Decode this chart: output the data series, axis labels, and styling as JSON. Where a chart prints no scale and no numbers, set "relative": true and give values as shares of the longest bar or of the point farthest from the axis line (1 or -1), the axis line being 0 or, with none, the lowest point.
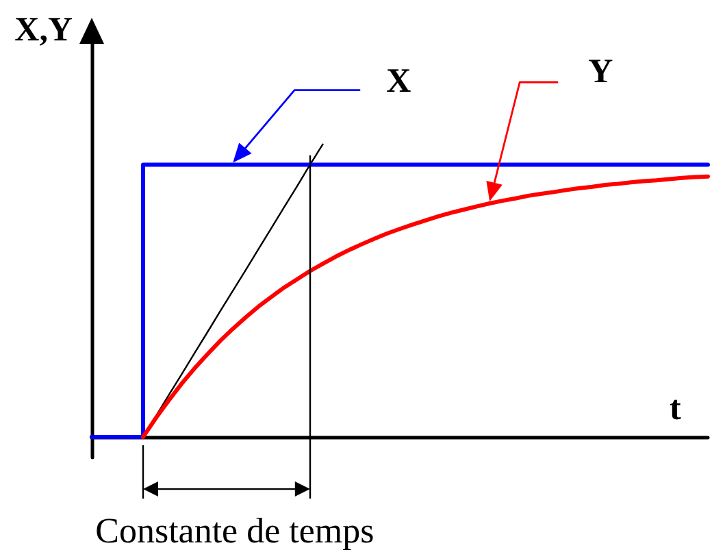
{
  "chart_data": {
    "type": "line",
    "xlabel": "t",
    "ylabel": "X,Y",
    "relative": true,
    "marker": "none",
    "categories": [
      null,
      null,
      null,
      null,
      null,
      null,
      null,
      null,
      null,
      null,
      null,
      null,
      null,
      null,
      null,
      null,
      null,
      null,
      null,
      null,
      null,
      null,
      null,
      null,
      null,
      null,
      null,
      null,
      null,
      null,
      null,
      null,
      null,
      null,
      null,
      null,
      null,
      null,
      null,
      null,
      null,
      null,
      null,
      null,
      null,
      null,
      null,
      null,
      null
    ],
    "series": [
      {
        "name": "X",
        "type": "step",
        "color": "#0000ff",
        "values": [
          0,
          0,
          0,
          0,
          0.93,
          0.93,
          0.93,
          0.93,
          0.93,
          0.93,
          0.93,
          0.93,
          0.93,
          0.93,
          0.93,
          0.93,
          0.93,
          0.93,
          0.93,
          0.93,
          0.93,
          0.93,
          0.93,
          0.93,
          0.93,
          0.93,
          0.93,
          0.93,
          0.93,
          0.93,
          0.93,
          0.93,
          0.93,
          0.93,
          0.93,
          0.93,
          0.93,
          0.93,
          0.93,
          0.93,
          0.93,
          0.93,
          0.93,
          0.93,
          0.93,
          0.93,
          0.93,
          0.93,
          0.93
        ]
      },
      {
        "name": "Y",
        "color": "#ff0000",
        "values": [
          null,
          null,
          null,
          null,
          0,
          0.065,
          0.125,
          0.182,
          0.234,
          0.282,
          0.328,
          0.37,
          0.409,
          0.446,
          0.479,
          0.511,
          0.539,
          0.567,
          0.592,
          0.616,
          0.638,
          0.658,
          0.677,
          0.695,
          0.711,
          0.726,
          0.74,
          0.754,
          0.766,
          0.777,
          0.788,
          0.798,
          0.807,
          0.815,
          0.824,
          0.831,
          0.837,
          0.844,
          0.85,
          0.855,
          0.861,
          0.865,
          0.87,
          0.874,
          0.877,
          0.881,
          0.885,
          0.888,
          0.89
        ]
      },
      {
        "color": "#000000",
        "values": [
          null,
          null,
          null,
          null,
          0,
          0.071,
          0.143,
          0.214,
          0.286,
          0.357,
          0.429,
          0.5,
          0.571,
          0.643,
          0.714,
          0.786,
          0.857,
          0.93,
          1,
          null,
          null,
          null,
          null,
          null,
          null,
          null,
          null,
          null,
          null,
          null,
          null,
          null,
          null,
          null,
          null,
          null,
          null,
          null,
          null,
          null,
          null,
          null,
          null,
          null,
          null,
          null,
          null,
          null,
          null
        ]
      }
    ],
    "annotations": [
      "Constante de temps"
    ]
  }
}
